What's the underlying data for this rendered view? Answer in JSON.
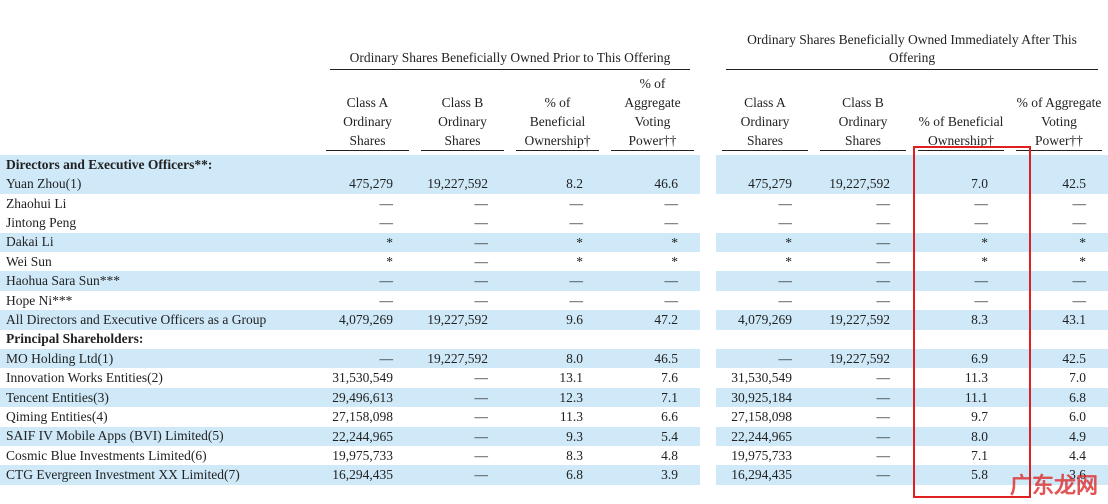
{
  "table": {
    "groups": [
      "Ordinary Shares Beneficially Owned Prior to This Offering",
      "Ordinary Shares Beneficially Owned Immediately After This Offering"
    ],
    "columns": [
      "Class A Ordinary Shares",
      "Class B Ordinary Shares",
      "% of Beneficial Ownership†",
      "% of Aggregate Voting Power††",
      "Class A Ordinary Shares",
      "Class B Ordinary Shares",
      "% of Beneficial Ownership†",
      "% of Aggregate Voting Power††"
    ],
    "rows": [
      {
        "label": "Directors and Executive Officers**:"
      },
      {
        "label": "Yuan Zhou(1)",
        "cells": [
          "475,279",
          "19,227,592",
          "8.2",
          "46.6",
          "475,279",
          "19,227,592",
          "7.0",
          "42.5"
        ]
      },
      {
        "label": "Zhaohui Li",
        "cells": [
          "—",
          "—",
          "—",
          "—",
          "—",
          "—",
          "—",
          "—"
        ]
      },
      {
        "label": "Jintong Peng",
        "cells": [
          "—",
          "—",
          "—",
          "—",
          "—",
          "—",
          "—",
          "—"
        ]
      },
      {
        "label": "Dakai Li",
        "cells": [
          "*",
          "—",
          "*",
          "*",
          "*",
          "—",
          "*",
          "*"
        ]
      },
      {
        "label": "Wei Sun",
        "cells": [
          "*",
          "—",
          "*",
          "*",
          "*",
          "—",
          "*",
          "*"
        ]
      },
      {
        "label": "Haohua Sara Sun***",
        "cells": [
          "—",
          "—",
          "—",
          "—",
          "—",
          "—",
          "—",
          "—"
        ]
      },
      {
        "label": "Hope Ni***",
        "cells": [
          "—",
          "—",
          "—",
          "—",
          "—",
          "—",
          "—",
          "—"
        ]
      },
      {
        "label": "All Directors and Executive Officers as a Group",
        "cells": [
          "4,079,269",
          "19,227,592",
          "9.6",
          "47.2",
          "4,079,269",
          "19,227,592",
          "8.3",
          "43.1"
        ]
      },
      {
        "label": "Principal Shareholders:"
      },
      {
        "label": "MO Holding Ltd(1)",
        "cells": [
          "—",
          "19,227,592",
          "8.0",
          "46.5",
          "—",
          "19,227,592",
          "6.9",
          "42.5"
        ]
      },
      {
        "label": "Innovation Works Entities(2)",
        "cells": [
          "31,530,549",
          "—",
          "13.1",
          "7.6",
          "31,530,549",
          "—",
          "11.3",
          "7.0"
        ]
      },
      {
        "label": "Tencent Entities(3)",
        "cells": [
          "29,496,613",
          "—",
          "12.3",
          "7.1",
          "30,925,184",
          "—",
          "11.1",
          "6.8"
        ]
      },
      {
        "label": "Qiming Entities(4)",
        "cells": [
          "27,158,098",
          "—",
          "11.3",
          "6.6",
          "27,158,098",
          "—",
          "9.7",
          "6.0"
        ]
      },
      {
        "label": "SAIF IV Mobile Apps (BVI) Limited(5)",
        "cells": [
          "22,244,965",
          "—",
          "9.3",
          "5.4",
          "22,244,965",
          "—",
          "8.0",
          "4.9"
        ]
      },
      {
        "label": "Cosmic Blue Investments Limited(6)",
        "cells": [
          "19,975,733",
          "—",
          "8.3",
          "4.8",
          "19,975,733",
          "—",
          "7.1",
          "4.4"
        ]
      },
      {
        "label": "CTG Evergreen Investment XX Limited(7)",
        "cells": [
          "16,294,435",
          "—",
          "6.8",
          "3.9",
          "16,294,435",
          "—",
          "5.8",
          "3.6"
        ]
      }
    ]
  },
  "watermark": "广东龙网"
}
